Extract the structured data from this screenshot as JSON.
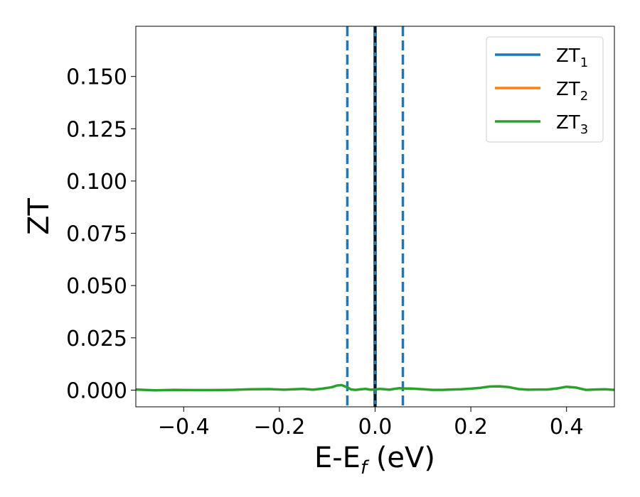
{
  "chart_data": {
    "type": "line",
    "xlabel": "E-E",
    "xlabel_sub": "f",
    "xlabel_unit": " (eV)",
    "ylabel": "ZT",
    "xlim": [
      -0.5,
      0.5
    ],
    "ylim": [
      -0.008,
      0.174
    ],
    "xticks": [
      -0.4,
      -0.2,
      0.0,
      0.2,
      0.4
    ],
    "xtick_labels": [
      "−0.4",
      "−0.2",
      "0.0",
      "0.2",
      "0.4"
    ],
    "yticks": [
      0.0,
      0.025,
      0.05,
      0.075,
      0.1,
      0.125,
      0.15
    ],
    "ytick_labels": [
      "0.000",
      "0.025",
      "0.050",
      "0.075",
      "0.100",
      "0.125",
      "0.150"
    ],
    "grid": false,
    "legend_position": "top-right",
    "series": [
      {
        "name": "ZT",
        "name_sub": "1",
        "color": "#1f77b4",
        "x": [],
        "y": []
      },
      {
        "name": "ZT",
        "name_sub": "2",
        "color": "#ff7f0e",
        "x": [],
        "y": []
      },
      {
        "name": "ZT",
        "name_sub": "3",
        "color": "#2ca02c",
        "x": [
          -0.5,
          -0.46,
          -0.42,
          -0.38,
          -0.34,
          -0.3,
          -0.26,
          -0.22,
          -0.19,
          -0.17,
          -0.15,
          -0.13,
          -0.11,
          -0.09,
          -0.08,
          -0.07,
          -0.06,
          -0.05,
          -0.04,
          -0.03,
          -0.02,
          -0.01,
          0.0,
          0.01,
          0.02,
          0.03,
          0.04,
          0.05,
          0.06,
          0.08,
          0.1,
          0.12,
          0.14,
          0.16,
          0.18,
          0.2,
          0.22,
          0.24,
          0.26,
          0.28,
          0.3,
          0.32,
          0.34,
          0.36,
          0.38,
          0.4,
          0.42,
          0.44,
          0.46,
          0.48,
          0.5
        ],
        "y": [
          0.0003,
          -0.0001,
          0.0001,
          0.0,
          0.0,
          0.0001,
          0.0004,
          0.0005,
          0.0002,
          0.0004,
          0.0006,
          0.0002,
          0.0007,
          0.0014,
          0.0022,
          0.0024,
          0.0015,
          0.0003,
          0.0001,
          0.0004,
          0.0006,
          0.0002,
          0.0003,
          0.0006,
          0.0004,
          0.0002,
          0.0006,
          0.0009,
          0.0008,
          0.0007,
          0.0004,
          0.0001,
          0.0001,
          0.0003,
          0.0004,
          0.0007,
          0.0011,
          0.0017,
          0.0018,
          0.0014,
          0.0005,
          0.0002,
          0.0003,
          0.0003,
          0.0008,
          0.0016,
          0.0012,
          0.0001,
          0.0003,
          0.0004,
          0.0001
        ]
      }
    ],
    "vertical_lines": [
      {
        "x": -0.058,
        "style": "dashed",
        "color": "#1f77b4"
      },
      {
        "x": 0.058,
        "style": "dashed",
        "color": "#1f77b4"
      },
      {
        "x": 0.0,
        "style": "solid",
        "color": "#1f77b4"
      },
      {
        "x": 0.0,
        "style": "dashed",
        "color": "#000000"
      }
    ]
  }
}
